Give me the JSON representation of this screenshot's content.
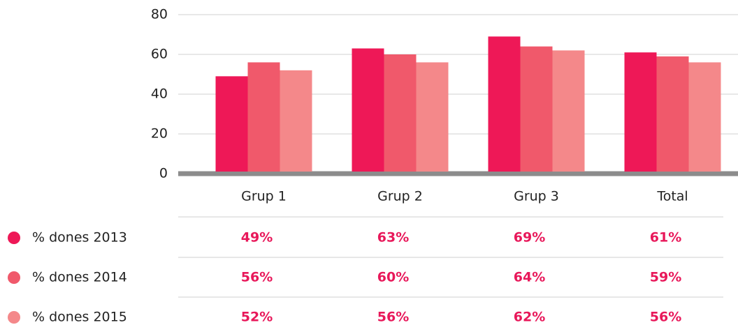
{
  "chart_data": {
    "type": "bar",
    "categories": [
      "Grup 1",
      "Grup 2",
      "Grup 3",
      "Total"
    ],
    "series": [
      {
        "name": "% dones 2013",
        "color": "#ee1857",
        "values": [
          49,
          63,
          69,
          61
        ],
        "value_labels": [
          "49%",
          "63%",
          "69%",
          "61%"
        ]
      },
      {
        "name": "% dones 2014",
        "color": "#f0596b",
        "values": [
          56,
          60,
          64,
          59
        ],
        "value_labels": [
          "56%",
          "60%",
          "64%",
          "59%"
        ]
      },
      {
        "name": "% dones 2015",
        "color": "#f4888a",
        "values": [
          52,
          56,
          62,
          56
        ],
        "value_labels": [
          "52%",
          "56%",
          "62%",
          "56%"
        ]
      }
    ],
    "ylim": [
      0,
      80
    ],
    "yticks": [
      0,
      20,
      40,
      60,
      80
    ],
    "grid": true
  }
}
